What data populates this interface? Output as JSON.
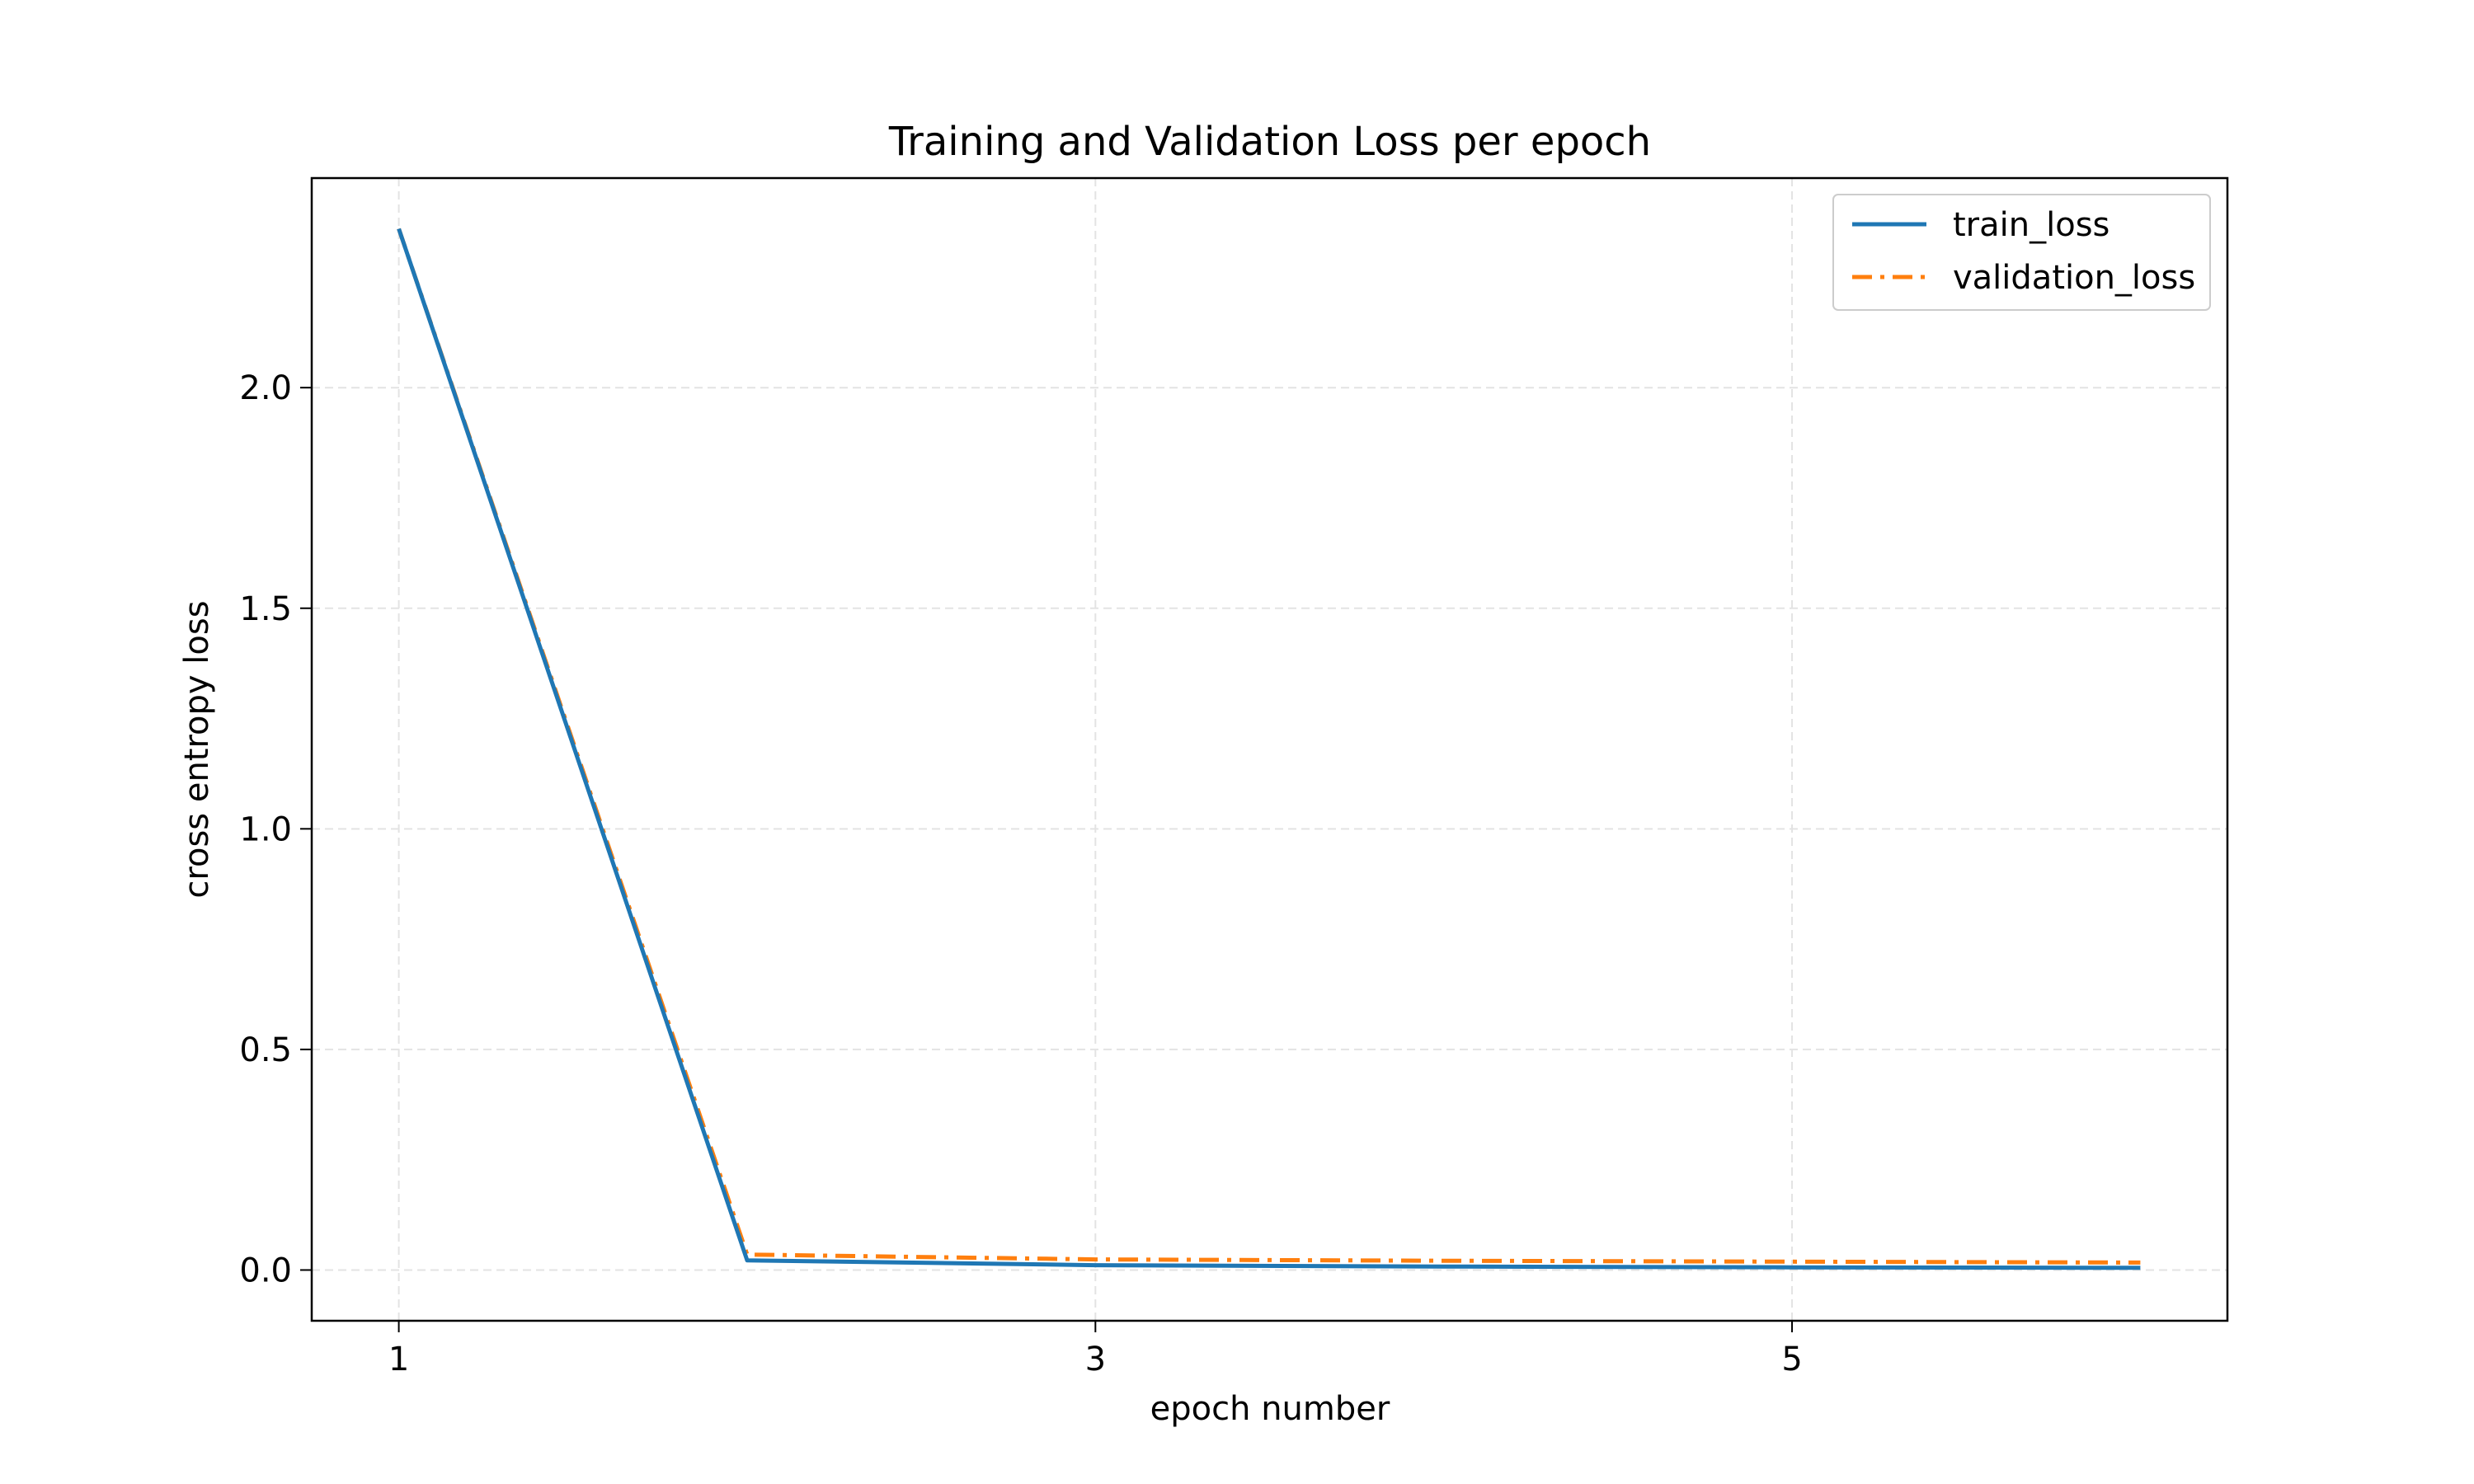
{
  "chart_data": {
    "type": "line",
    "title": "Training and Validation Loss per epoch",
    "xlabel": "epoch number",
    "ylabel": "cross entropy loss",
    "x": [
      1,
      2,
      3,
      4,
      5,
      6
    ],
    "xlim": [
      0.75,
      6.25
    ],
    "ylim": [
      -0.115,
      2.475
    ],
    "xticks": [
      1,
      3,
      5
    ],
    "yticks": [
      0.0,
      0.5,
      1.0,
      1.5,
      2.0
    ],
    "ytick_labels": [
      "0.0",
      "0.5",
      "1.0",
      "1.5",
      "2.0"
    ],
    "grid": true,
    "legend_position": "top-right",
    "series": [
      {
        "name": "train_loss",
        "color": "#1f77b4",
        "style": "solid",
        "values": [
          2.36,
          0.022,
          0.011,
          0.008,
          0.006,
          0.005
        ]
      },
      {
        "name": "validation_loss",
        "color": "#ff7f0e",
        "style": "dashdot",
        "values": [
          2.36,
          0.035,
          0.024,
          0.021,
          0.019,
          0.017
        ]
      }
    ]
  }
}
